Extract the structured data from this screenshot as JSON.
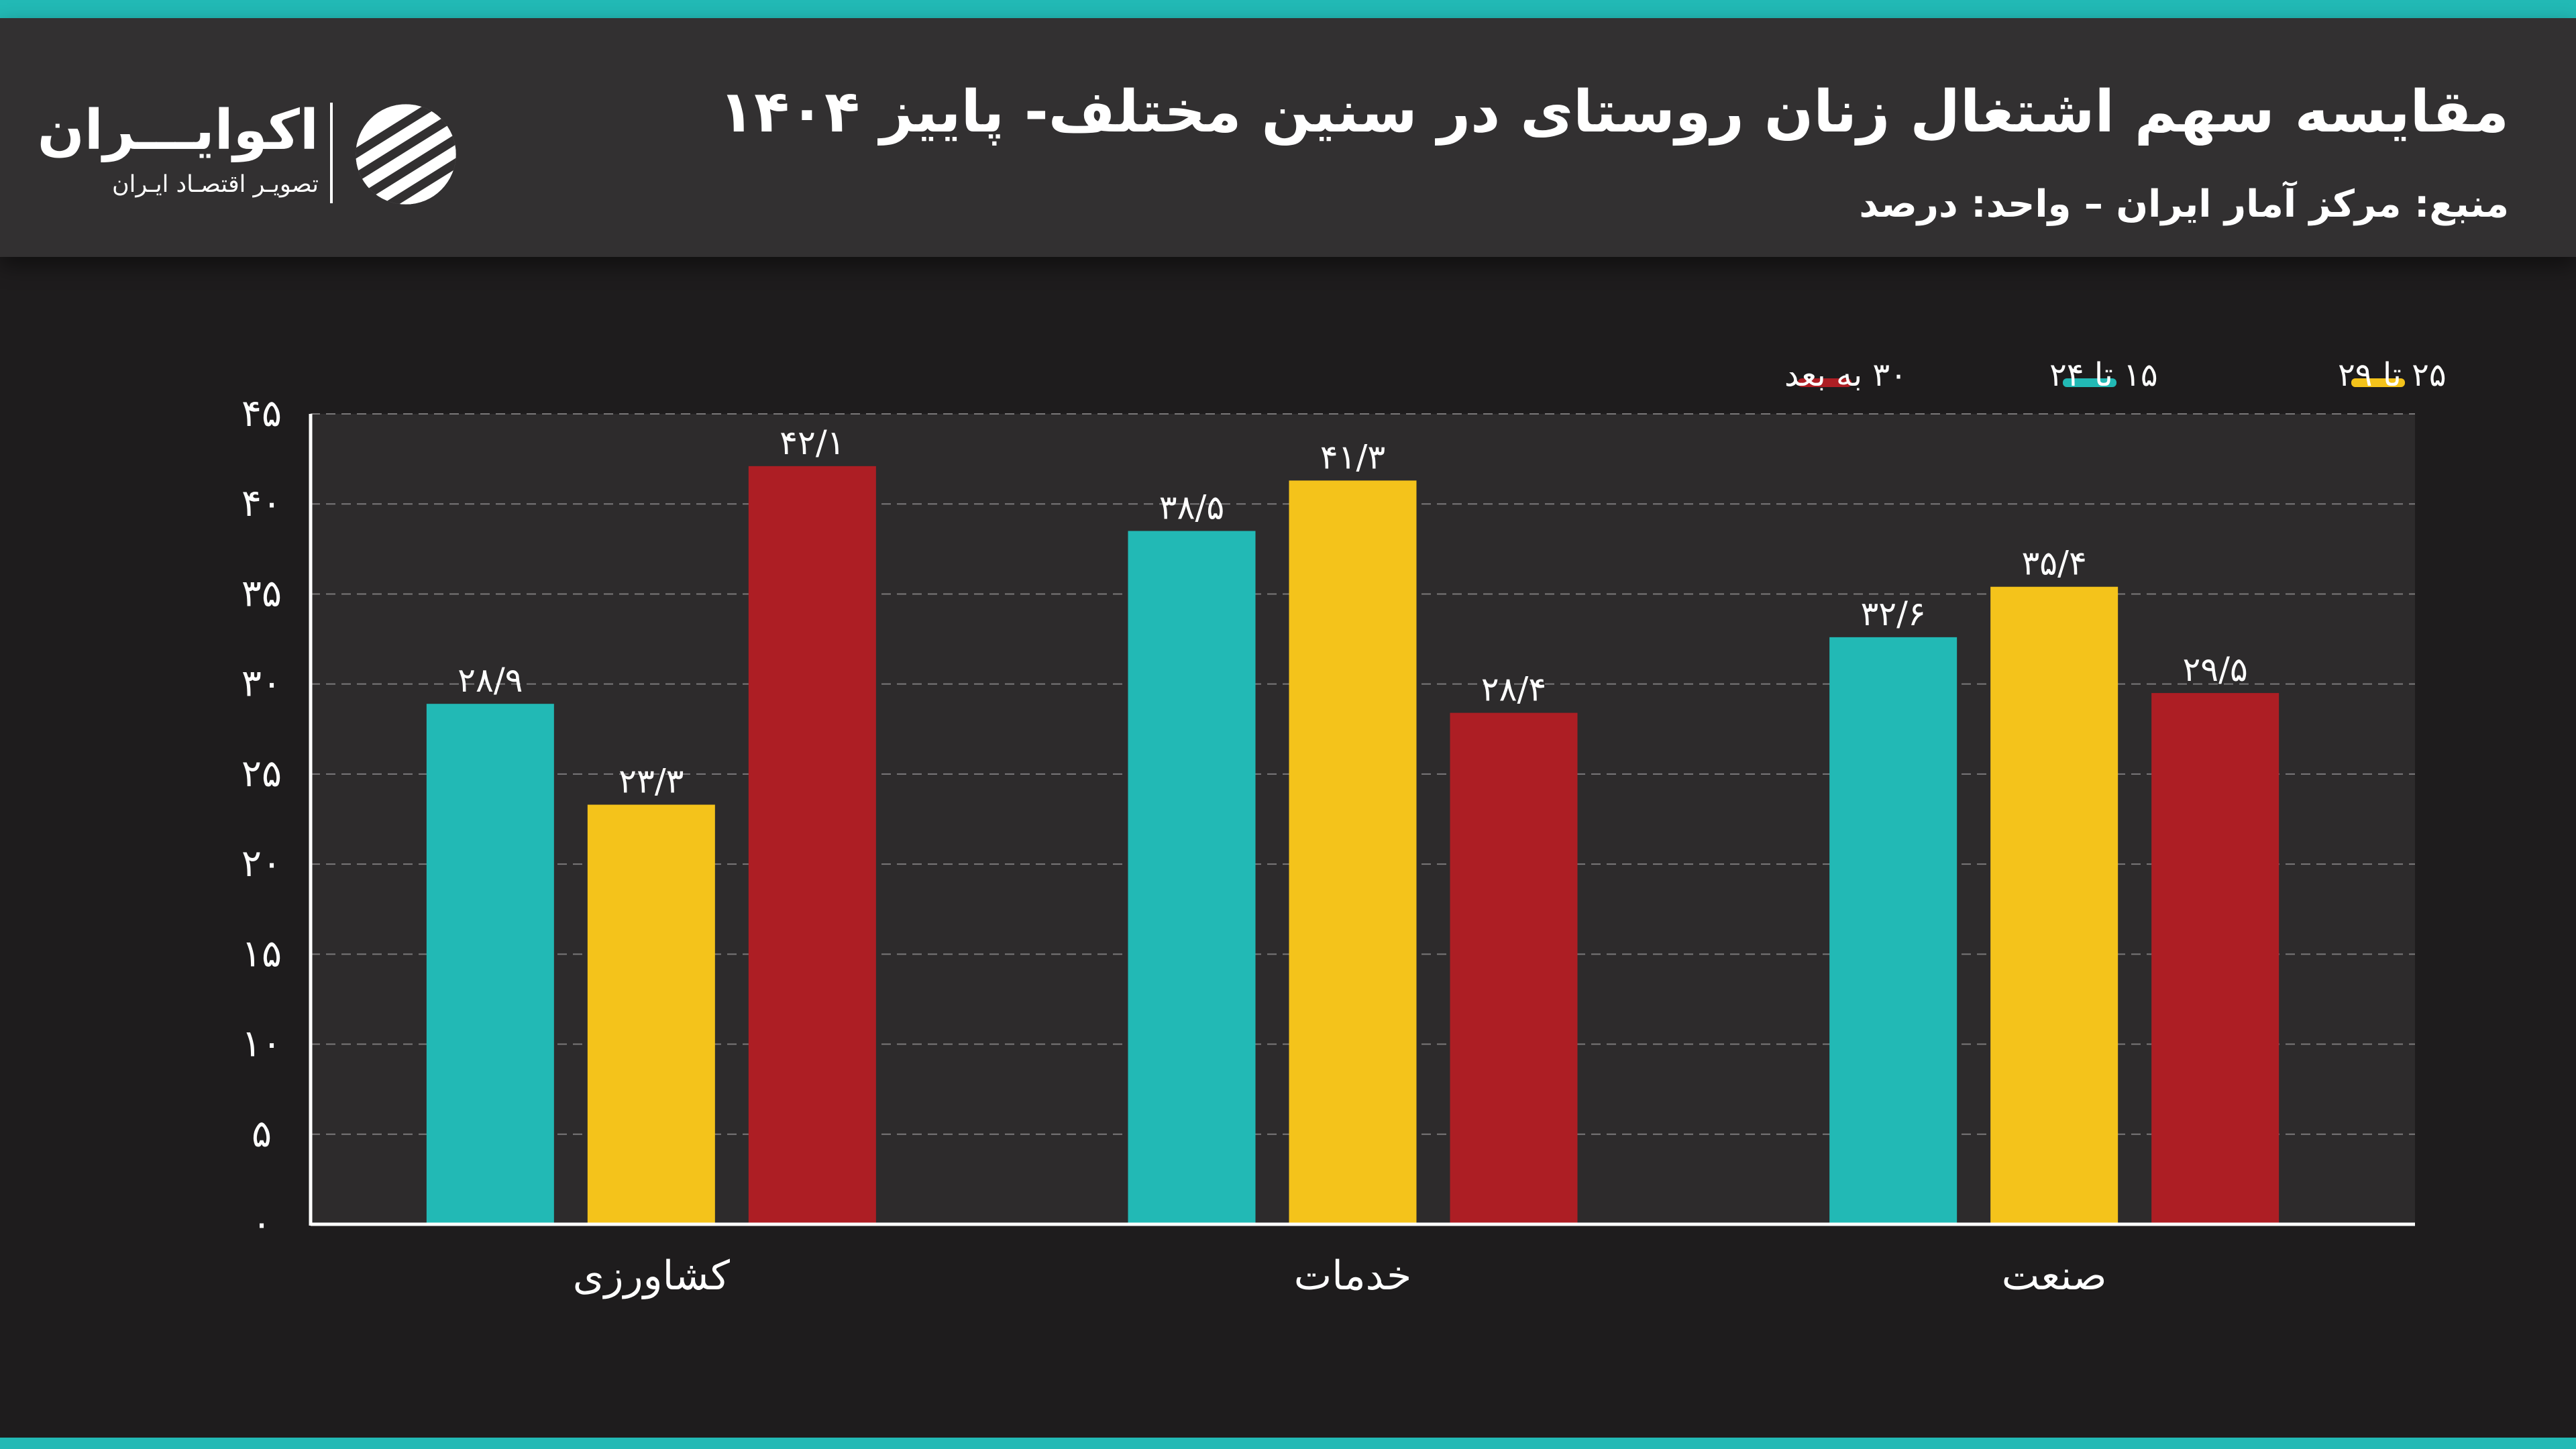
{
  "header": {
    "title": "مقایسه سهم اشتغال زنان روستای در سنین مختلف- پاییز ۱۴۰۴",
    "subtitle": "منبع: مرکز آمار ایران – واحد: درصد"
  },
  "logo": {
    "name": "اکوایـــران",
    "tagline": "تصویـر اقتصـاد ایـران"
  },
  "colors": {
    "teal": "#22b9b5",
    "yellow": "#f4c31b",
    "red": "#ad1e24",
    "plot_bg": "#2d2b2c",
    "page_bg": "#1e1c1d"
  },
  "chart_data": {
    "type": "bar",
    "title": "مقایسه سهم اشتغال زنان روستای در سنین مختلف- پاییز ۱۴۰۴",
    "xlabel": "",
    "ylabel": "",
    "ylim": [
      0,
      45
    ],
    "yticks": [
      0,
      5,
      10,
      15,
      20,
      25,
      30,
      35,
      40,
      45
    ],
    "ytick_labels": [
      "۰",
      "۵",
      "۱۰",
      "۱۵",
      "۲۰",
      "۲۵",
      "۳۰",
      "۳۵",
      "۴۰",
      "۴۵"
    ],
    "grid": true,
    "legend_position": "top-right",
    "categories": [
      "کشاورزی",
      "خدمات",
      "صنعت"
    ],
    "series": [
      {
        "name": "۱۵ تا ۲۴",
        "color": "#22b9b5",
        "values": [
          28.9,
          38.5,
          32.6
        ],
        "labels": [
          "۲۸/۹",
          "۳۸/۵",
          "۳۲/۶"
        ]
      },
      {
        "name": "۲۵ تا ۲۹",
        "color": "#f4c31b",
        "values": [
          23.3,
          41.3,
          35.4
        ],
        "labels": [
          "۲۳/۳",
          "۴۱/۳",
          "۳۵/۴"
        ]
      },
      {
        "name": "۳۰ به بعد",
        "color": "#ad1e24",
        "values": [
          42.1,
          28.4,
          29.5
        ],
        "labels": [
          "۴۲/۱",
          "۲۸/۴",
          "۲۹/۵"
        ]
      }
    ],
    "legend_order": [
      "۲۵ تا ۲۹",
      "۱۵ تا ۲۴",
      "۳۰ به بعد"
    ]
  }
}
